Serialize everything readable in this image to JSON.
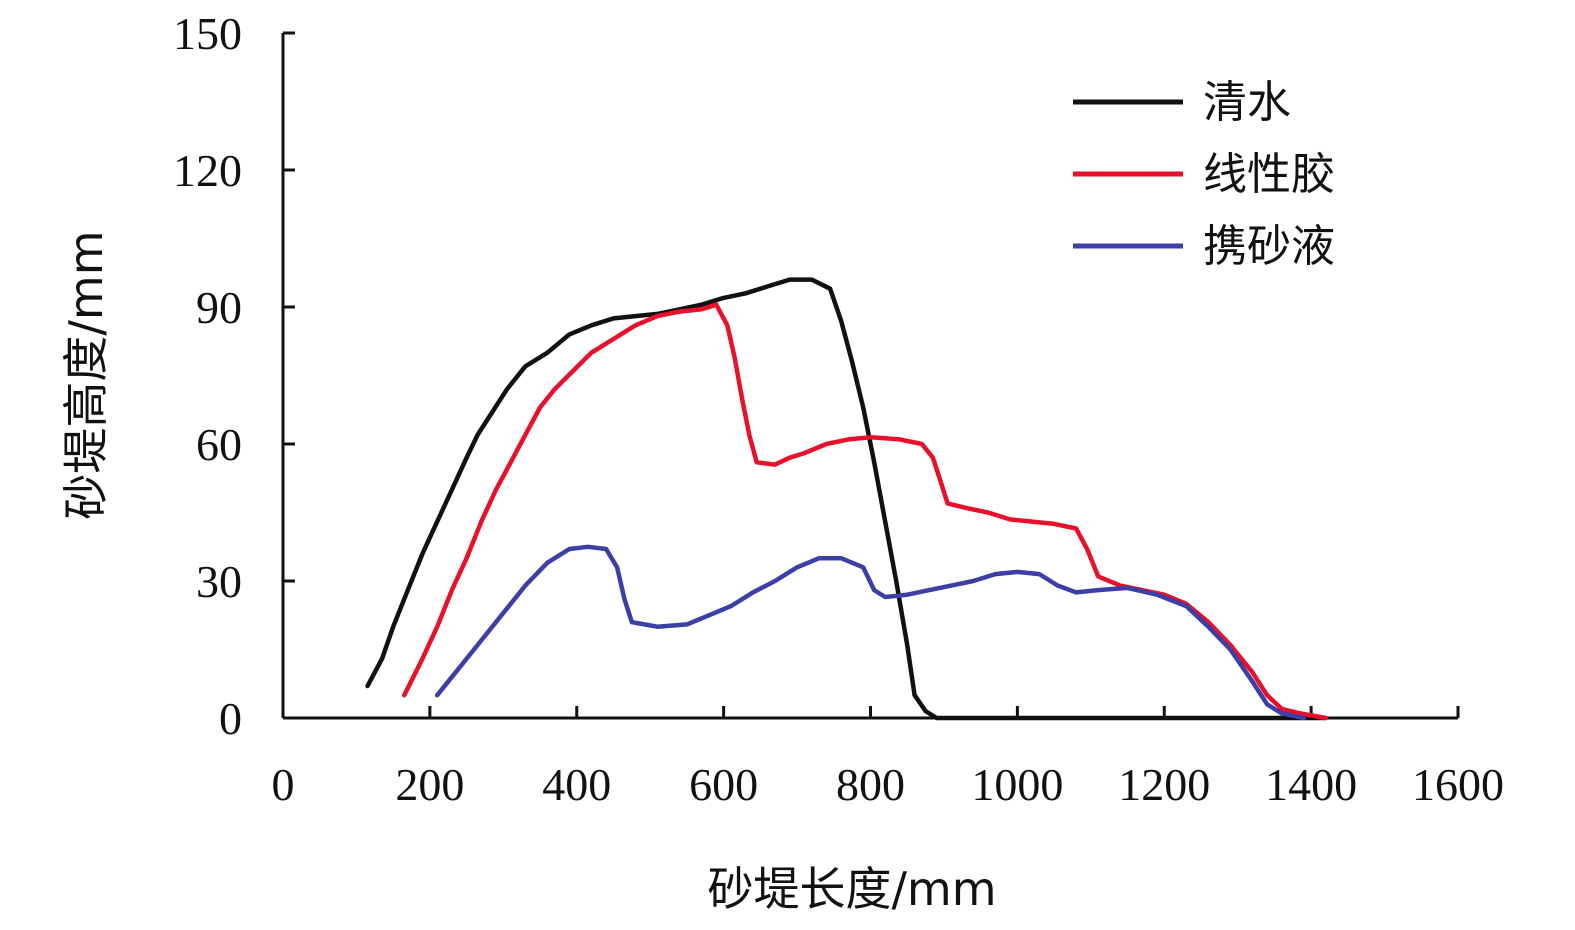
{
  "chart_data": {
    "type": "line",
    "title": "",
    "xlabel": "砂堤长度/mm",
    "ylabel": "砂堤高度/mm",
    "xlim": [
      0,
      1600
    ],
    "ylim": [
      0,
      150
    ],
    "xticks": [
      0,
      200,
      400,
      600,
      800,
      1000,
      1200,
      1400,
      1600
    ],
    "yticks": [
      0,
      30,
      60,
      90,
      120,
      150
    ],
    "xtick_labels": [
      "0",
      "200",
      "400",
      "600",
      "800",
      "1000",
      "1200",
      "1400",
      "1600"
    ],
    "ytick_labels": [
      "0",
      "30",
      "60",
      "90",
      "120",
      "150"
    ],
    "grid": false,
    "legend_position": "top-right",
    "series": [
      {
        "name": "清水",
        "color": "#111111",
        "points": [
          [
            115,
            7
          ],
          [
            135,
            13
          ],
          [
            150,
            20
          ],
          [
            170,
            28
          ],
          [
            190,
            36
          ],
          [
            210,
            43
          ],
          [
            230,
            50
          ],
          [
            250,
            57
          ],
          [
            265,
            62
          ],
          [
            285,
            67
          ],
          [
            305,
            72
          ],
          [
            330,
            77
          ],
          [
            360,
            80
          ],
          [
            390,
            84
          ],
          [
            420,
            86
          ],
          [
            450,
            87.5
          ],
          [
            480,
            88
          ],
          [
            510,
            88.5
          ],
          [
            540,
            89.5
          ],
          [
            570,
            90.5
          ],
          [
            600,
            92
          ],
          [
            630,
            93
          ],
          [
            660,
            94.5
          ],
          [
            690,
            96
          ],
          [
            720,
            96
          ],
          [
            745,
            94
          ],
          [
            760,
            87
          ],
          [
            775,
            78
          ],
          [
            790,
            68
          ],
          [
            805,
            56
          ],
          [
            820,
            43
          ],
          [
            835,
            30
          ],
          [
            850,
            16
          ],
          [
            860,
            5
          ],
          [
            875,
            1.5
          ],
          [
            890,
            0
          ],
          [
            1420,
            0
          ]
        ]
      },
      {
        "name": "线性胶",
        "color": "#e8102a",
        "points": [
          [
            165,
            5
          ],
          [
            190,
            13
          ],
          [
            210,
            20
          ],
          [
            230,
            28
          ],
          [
            250,
            35
          ],
          [
            270,
            43
          ],
          [
            290,
            50
          ],
          [
            310,
            56
          ],
          [
            330,
            62
          ],
          [
            350,
            68
          ],
          [
            370,
            72
          ],
          [
            395,
            76
          ],
          [
            420,
            80
          ],
          [
            450,
            83
          ],
          [
            480,
            86
          ],
          [
            510,
            88
          ],
          [
            540,
            89
          ],
          [
            570,
            89.5
          ],
          [
            590,
            90.5
          ],
          [
            605,
            86
          ],
          [
            615,
            79
          ],
          [
            625,
            70
          ],
          [
            635,
            62
          ],
          [
            645,
            56
          ],
          [
            670,
            55.5
          ],
          [
            690,
            57
          ],
          [
            710,
            58
          ],
          [
            740,
            60
          ],
          [
            770,
            61
          ],
          [
            800,
            61.5
          ],
          [
            840,
            61
          ],
          [
            870,
            60
          ],
          [
            885,
            57
          ],
          [
            895,
            52
          ],
          [
            905,
            47
          ],
          [
            930,
            46
          ],
          [
            960,
            45
          ],
          [
            990,
            43.5
          ],
          [
            1020,
            43
          ],
          [
            1050,
            42.5
          ],
          [
            1080,
            41.5
          ],
          [
            1095,
            37
          ],
          [
            1110,
            31
          ],
          [
            1140,
            29
          ],
          [
            1170,
            28
          ],
          [
            1200,
            27
          ],
          [
            1230,
            25
          ],
          [
            1260,
            21
          ],
          [
            1290,
            16
          ],
          [
            1320,
            10
          ],
          [
            1340,
            5
          ],
          [
            1360,
            2
          ],
          [
            1385,
            1
          ],
          [
            1420,
            0
          ]
        ]
      },
      {
        "name": "携砂液",
        "color": "#3b3fa6",
        "points": [
          [
            210,
            5
          ],
          [
            240,
            11
          ],
          [
            270,
            17
          ],
          [
            300,
            23
          ],
          [
            330,
            29
          ],
          [
            360,
            34
          ],
          [
            390,
            37
          ],
          [
            415,
            37.5
          ],
          [
            440,
            37
          ],
          [
            455,
            33
          ],
          [
            465,
            26
          ],
          [
            475,
            21
          ],
          [
            510,
            20
          ],
          [
            550,
            20.5
          ],
          [
            580,
            22.5
          ],
          [
            610,
            24.5
          ],
          [
            640,
            27.5
          ],
          [
            670,
            30
          ],
          [
            700,
            33
          ],
          [
            730,
            35
          ],
          [
            760,
            35
          ],
          [
            790,
            33
          ],
          [
            805,
            28
          ],
          [
            820,
            26.5
          ],
          [
            850,
            27
          ],
          [
            880,
            28
          ],
          [
            910,
            29
          ],
          [
            940,
            30
          ],
          [
            970,
            31.5
          ],
          [
            1000,
            32
          ],
          [
            1030,
            31.5
          ],
          [
            1055,
            29
          ],
          [
            1080,
            27.5
          ],
          [
            1110,
            28
          ],
          [
            1150,
            28.5
          ],
          [
            1190,
            27
          ],
          [
            1230,
            24.5
          ],
          [
            1260,
            20
          ],
          [
            1290,
            15
          ],
          [
            1320,
            8
          ],
          [
            1340,
            3
          ],
          [
            1360,
            1
          ],
          [
            1390,
            0
          ]
        ]
      }
    ]
  }
}
